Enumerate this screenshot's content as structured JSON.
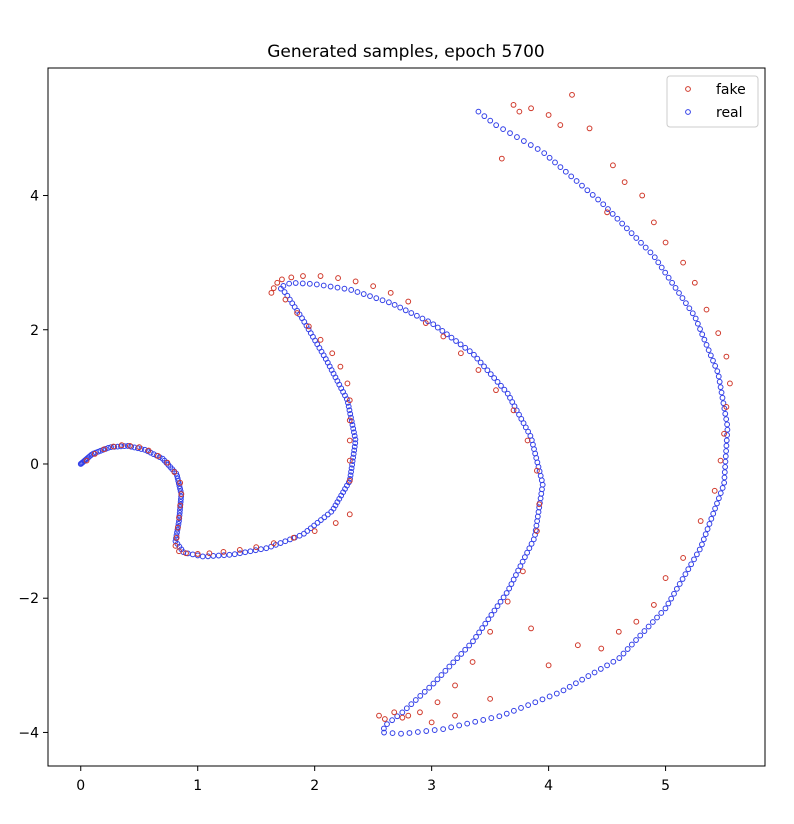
{
  "chart_data": {
    "type": "scatter",
    "title": "Generated samples, epoch 5700",
    "xlabel": "",
    "ylabel": "",
    "xlim": [
      -0.28,
      5.85
    ],
    "ylim": [
      -4.5,
      5.9
    ],
    "xticks": [
      0,
      1,
      2,
      3,
      4,
      5
    ],
    "yticks": [
      -4,
      -2,
      0,
      2,
      4
    ],
    "grid": false,
    "legend_position": "top-right",
    "series": [
      {
        "name": "fake",
        "color": "#d0392b",
        "marker": "circle-open",
        "points": [
          [
            0.05,
            0.05
          ],
          [
            0.12,
            0.15
          ],
          [
            0.2,
            0.22
          ],
          [
            0.28,
            0.26
          ],
          [
            0.35,
            0.28
          ],
          [
            0.42,
            0.27
          ],
          [
            0.5,
            0.25
          ],
          [
            0.58,
            0.2
          ],
          [
            0.66,
            0.12
          ],
          [
            0.74,
            0.02
          ],
          [
            0.8,
            -0.12
          ],
          [
            0.85,
            -0.28
          ],
          [
            0.86,
            -0.45
          ],
          [
            0.85,
            -0.62
          ],
          [
            0.84,
            -0.8
          ],
          [
            0.83,
            -0.95
          ],
          [
            0.82,
            -1.1
          ],
          [
            0.81,
            -1.22
          ],
          [
            0.84,
            -1.3
          ],
          [
            0.9,
            -1.33
          ],
          [
            1.0,
            -1.34
          ],
          [
            1.1,
            -1.33
          ],
          [
            1.22,
            -1.31
          ],
          [
            1.36,
            -1.28
          ],
          [
            1.5,
            -1.24
          ],
          [
            1.65,
            -1.18
          ],
          [
            1.82,
            -1.1
          ],
          [
            2.0,
            -1.0
          ],
          [
            2.18,
            -0.88
          ],
          [
            2.3,
            -0.75
          ],
          [
            1.63,
            2.55
          ],
          [
            1.65,
            2.62
          ],
          [
            1.68,
            2.7
          ],
          [
            1.72,
            2.75
          ],
          [
            1.8,
            2.78
          ],
          [
            1.9,
            2.8
          ],
          [
            2.05,
            2.8
          ],
          [
            2.2,
            2.77
          ],
          [
            2.35,
            2.72
          ],
          [
            2.5,
            2.65
          ],
          [
            2.65,
            2.55
          ],
          [
            2.8,
            2.42
          ],
          [
            1.75,
            2.45
          ],
          [
            1.85,
            2.25
          ],
          [
            1.95,
            2.05
          ],
          [
            2.05,
            1.85
          ],
          [
            2.15,
            1.65
          ],
          [
            2.22,
            1.45
          ],
          [
            2.28,
            1.2
          ],
          [
            2.3,
            0.95
          ],
          [
            2.3,
            0.65
          ],
          [
            2.3,
            0.35
          ],
          [
            2.3,
            0.05
          ],
          [
            2.3,
            -0.25
          ],
          [
            2.95,
            2.1
          ],
          [
            3.1,
            1.9
          ],
          [
            3.25,
            1.65
          ],
          [
            3.4,
            1.4
          ],
          [
            3.55,
            1.1
          ],
          [
            3.7,
            0.8
          ],
          [
            3.82,
            0.35
          ],
          [
            3.9,
            -0.1
          ],
          [
            3.92,
            -0.6
          ],
          [
            3.9,
            -1.0
          ],
          [
            3.78,
            -1.6
          ],
          [
            3.65,
            -2.05
          ],
          [
            3.5,
            -2.5
          ],
          [
            3.35,
            -2.95
          ],
          [
            3.2,
            -3.3
          ],
          [
            3.05,
            -3.55
          ],
          [
            2.9,
            -3.7
          ],
          [
            2.75,
            -3.78
          ],
          [
            2.6,
            -3.8
          ],
          [
            2.55,
            -3.75
          ],
          [
            2.68,
            -3.7
          ],
          [
            2.8,
            -3.75
          ],
          [
            3.0,
            -3.85
          ],
          [
            3.2,
            -3.75
          ],
          [
            3.5,
            -3.5
          ],
          [
            3.85,
            -2.45
          ],
          [
            4.0,
            -3.0
          ],
          [
            4.25,
            -2.7
          ],
          [
            4.45,
            -2.75
          ],
          [
            3.7,
            5.35
          ],
          [
            3.75,
            5.25
          ],
          [
            3.85,
            5.3
          ],
          [
            4.0,
            5.2
          ],
          [
            4.1,
            5.05
          ],
          [
            4.2,
            5.5
          ],
          [
            4.35,
            5.0
          ],
          [
            3.6,
            4.55
          ],
          [
            4.55,
            4.45
          ],
          [
            4.65,
            4.2
          ],
          [
            4.8,
            4.0
          ],
          [
            4.5,
            3.75
          ],
          [
            4.9,
            3.6
          ],
          [
            5.0,
            3.3
          ],
          [
            5.15,
            3.0
          ],
          [
            5.25,
            2.7
          ],
          [
            5.35,
            2.3
          ],
          [
            5.45,
            1.95
          ],
          [
            5.52,
            1.6
          ],
          [
            5.55,
            1.2
          ],
          [
            5.52,
            0.85
          ],
          [
            5.5,
            0.45
          ],
          [
            5.47,
            0.05
          ],
          [
            5.42,
            -0.4
          ],
          [
            5.3,
            -0.85
          ],
          [
            5.15,
            -1.4
          ],
          [
            5.0,
            -1.7
          ],
          [
            4.9,
            -2.1
          ],
          [
            4.75,
            -2.35
          ],
          [
            4.6,
            -2.5
          ]
        ]
      },
      {
        "name": "real",
        "color": "#3340e8",
        "marker": "circle-open",
        "curves": [
          {
            "t": [
              0,
              1
            ],
            "count": 260
          },
          {
            "t": [
              1,
              2
            ],
            "count": 170
          }
        ]
      }
    ]
  }
}
